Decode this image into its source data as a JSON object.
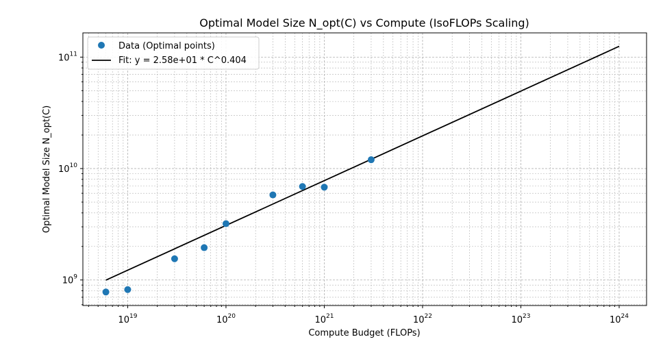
{
  "chart_data": {
    "type": "scatter",
    "title": "Optimal Model Size N_opt(C) vs Compute (IsoFLOPs Scaling)",
    "xlabel": "Compute Budget (FLOPs)",
    "ylabel": "Optimal Model Size N_opt(C)",
    "x_scale": "log",
    "y_scale": "log",
    "xlim": [
      3.5e+18,
      1.9e+24
    ],
    "ylim": [
      590000000.0,
      165000000000.0
    ],
    "grid": true,
    "legend_position": "top-left",
    "x_ticks": [
      {
        "value": 1e+19,
        "base": "10",
        "exp": "19"
      },
      {
        "value": 1e+20,
        "base": "10",
        "exp": "20"
      },
      {
        "value": 1e+21,
        "base": "10",
        "exp": "21"
      },
      {
        "value": 1e+22,
        "base": "10",
        "exp": "22"
      },
      {
        "value": 1e+23,
        "base": "10",
        "exp": "23"
      },
      {
        "value": 1e+24,
        "base": "10",
        "exp": "24"
      }
    ],
    "y_ticks": [
      {
        "value": 1000000000.0,
        "base": "10",
        "exp": "9"
      },
      {
        "value": 10000000000.0,
        "base": "10",
        "exp": "10"
      },
      {
        "value": 100000000000.0,
        "base": "10",
        "exp": "11"
      }
    ],
    "series": [
      {
        "name": "Data (Optimal points)",
        "kind": "scatter",
        "color": "#1f77b4",
        "x": [
          6e+18,
          1e+19,
          3e+19,
          6e+19,
          1e+20,
          3e+20,
          6e+20,
          1e+21,
          3e+21
        ],
        "y": [
          780000000.0,
          820000000.0,
          1550000000.0,
          1950000000.0,
          3200000000.0,
          5800000000.0,
          6900000000.0,
          6800000000.0,
          12000000000.0
        ]
      },
      {
        "name": "Fit: y = 2.58e+01 * C^0.404",
        "kind": "line",
        "color": "#000000",
        "x": [
          6e+18,
          1e+24
        ],
        "y": [
          997000000.0,
          125000000000.0
        ]
      }
    ]
  }
}
